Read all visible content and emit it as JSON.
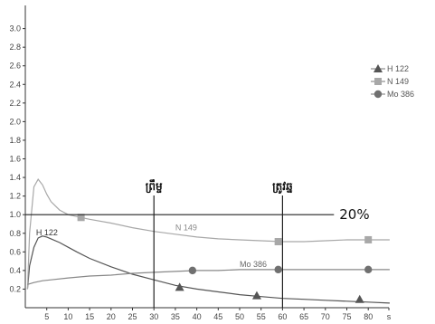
{
  "chart_data": {
    "type": "line",
    "xlim": [
      0,
      85
    ],
    "ylim": [
      0,
      3.2
    ],
    "x_ticks": [
      "5",
      "10",
      "15",
      "20",
      "25",
      "30",
      "35",
      "40",
      "45",
      "50",
      "55",
      "60",
      "65",
      "70",
      "75",
      "80",
      "s"
    ],
    "y_ticks": [
      "0.2",
      "0.4",
      "0.6",
      "0.8",
      "1.0",
      "1.2",
      "1.4",
      "1.6",
      "1.8",
      "2.0",
      "2.2",
      "2.4",
      "2.6",
      "2.8",
      "3.0"
    ],
    "series": [
      {
        "name": "H 122",
        "marker": "triangle",
        "color": "#555555",
        "x": [
          0.5,
          1,
          2,
          3,
          4,
          5,
          6,
          8,
          10,
          12,
          15,
          20,
          25,
          30,
          35,
          40,
          45,
          50,
          55,
          60,
          65,
          70,
          75,
          80,
          85
        ],
        "y": [
          0.2,
          0.45,
          0.65,
          0.75,
          0.77,
          0.76,
          0.74,
          0.7,
          0.65,
          0.6,
          0.53,
          0.44,
          0.36,
          0.3,
          0.24,
          0.2,
          0.17,
          0.14,
          0.12,
          0.1,
          0.09,
          0.08,
          0.07,
          0.06,
          0.05
        ],
        "markers_x": [
          36,
          54,
          78
        ],
        "markers_y": [
          0.22,
          0.13,
          0.09
        ]
      },
      {
        "name": "N 149",
        "marker": "square",
        "color": "#a8a8a8",
        "x": [
          0.5,
          1,
          2,
          3,
          4,
          5,
          6,
          8,
          10,
          13,
          15,
          20,
          25,
          30,
          35,
          40,
          45,
          50,
          55,
          60,
          65,
          70,
          75,
          80,
          85
        ],
        "y": [
          0.2,
          0.8,
          1.3,
          1.38,
          1.32,
          1.22,
          1.14,
          1.05,
          1.0,
          0.97,
          0.95,
          0.91,
          0.86,
          0.82,
          0.79,
          0.76,
          0.74,
          0.73,
          0.72,
          0.71,
          0.71,
          0.72,
          0.73,
          0.73,
          0.73
        ],
        "markers_x": [
          13,
          59,
          80
        ],
        "markers_y": [
          0.97,
          0.71,
          0.73
        ]
      },
      {
        "name": "Mo 386",
        "marker": "circle",
        "color": "#707070",
        "x": [
          0.5,
          2,
          4,
          6,
          10,
          15,
          20,
          25,
          30,
          35,
          40,
          45,
          50,
          55,
          60,
          65,
          70,
          75,
          80,
          85
        ],
        "y": [
          0.25,
          0.27,
          0.29,
          0.3,
          0.32,
          0.34,
          0.35,
          0.37,
          0.38,
          0.39,
          0.4,
          0.4,
          0.41,
          0.41,
          0.41,
          0.41,
          0.41,
          0.41,
          0.41,
          0.41
        ],
        "markers_x": [
          39,
          59,
          80
        ],
        "markers_y": [
          0.4,
          0.41,
          0.41
        ]
      }
    ],
    "inline_labels": [
      {
        "text": "H 122",
        "x": 2.5,
        "y": 0.78
      },
      {
        "text": "N 149",
        "x": 35,
        "y": 0.83
      },
      {
        "text": "Mo 386",
        "x": 50,
        "y": 0.44
      }
    ],
    "reference_line": {
      "y": 1.0,
      "x_end": 72,
      "label": "20%"
    },
    "annotations": [
      {
        "text": "ព្រឹម្ច",
        "x": 30
      },
      {
        "text": "ត្រូវឆ្ន",
        "x": 60
      }
    ],
    "legend": {
      "position": "right",
      "entries": [
        "H 122",
        "N 149",
        "Mo 386"
      ]
    },
    "grid": false
  }
}
